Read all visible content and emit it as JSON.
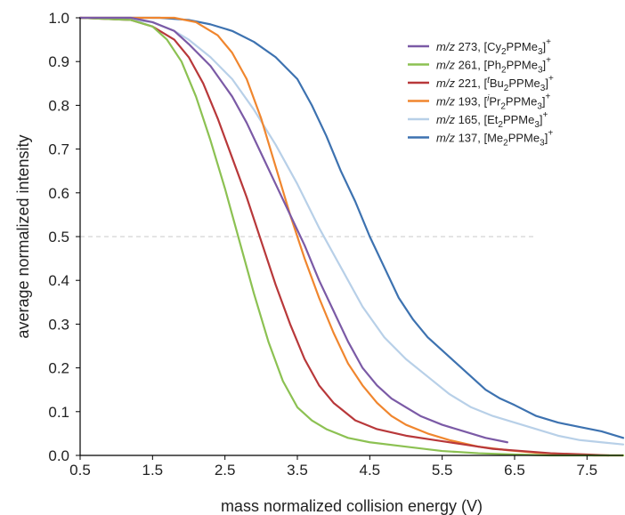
{
  "chart_data": {
    "type": "line",
    "xlabel": "mass normalized collision energy (V)",
    "ylabel": "average normalized intensity",
    "xlim": [
      0.5,
      8.0
    ],
    "ylim": [
      0.0,
      1.0
    ],
    "x_ticks": [
      "0.5",
      "1.5",
      "2.5",
      "3.5",
      "4.5",
      "5.5",
      "6.5",
      "7.5"
    ],
    "y_ticks": [
      "0.0",
      "0.1",
      "0.2",
      "0.3",
      "0.4",
      "0.5",
      "0.6",
      "0.7",
      "0.8",
      "0.9",
      "1.0"
    ],
    "reference_line": {
      "y": 0.5,
      "style": "dashed",
      "x_start": 0.5,
      "x_end": 6.8
    },
    "legend": {
      "placement": "top-right"
    },
    "series": [
      {
        "mz": "273",
        "ion": {
          "pre": "[Cy",
          "sub": "2",
          "mid": "PPMe",
          "sub2": "3",
          "post": "]",
          "sup": "+"
        },
        "color": "#7b5aa6",
        "points": [
          [
            0.5,
            1.0
          ],
          [
            1.2,
            1.0
          ],
          [
            1.5,
            0.99
          ],
          [
            1.8,
            0.97
          ],
          [
            2.0,
            0.94
          ],
          [
            2.3,
            0.89
          ],
          [
            2.6,
            0.82
          ],
          [
            2.8,
            0.76
          ],
          [
            3.0,
            0.69
          ],
          [
            3.2,
            0.62
          ],
          [
            3.4,
            0.55
          ],
          [
            3.6,
            0.48
          ],
          [
            3.8,
            0.4
          ],
          [
            4.0,
            0.33
          ],
          [
            4.2,
            0.26
          ],
          [
            4.4,
            0.2
          ],
          [
            4.6,
            0.16
          ],
          [
            4.8,
            0.13
          ],
          [
            5.0,
            0.11
          ],
          [
            5.2,
            0.09
          ],
          [
            5.5,
            0.07
          ],
          [
            5.8,
            0.055
          ],
          [
            6.1,
            0.04
          ],
          [
            6.4,
            0.03
          ]
        ]
      },
      {
        "mz": "261",
        "ion": {
          "pre": "[Ph",
          "sub": "2",
          "mid": "PPMe",
          "sub2": "3",
          "post": "]",
          "sup": "+"
        },
        "color": "#8cc152",
        "points": [
          [
            0.5,
            1.0
          ],
          [
            1.2,
            0.995
          ],
          [
            1.5,
            0.98
          ],
          [
            1.7,
            0.95
          ],
          [
            1.9,
            0.9
          ],
          [
            2.1,
            0.82
          ],
          [
            2.3,
            0.72
          ],
          [
            2.5,
            0.61
          ],
          [
            2.7,
            0.49
          ],
          [
            2.9,
            0.37
          ],
          [
            3.1,
            0.26
          ],
          [
            3.3,
            0.17
          ],
          [
            3.5,
            0.11
          ],
          [
            3.7,
            0.08
          ],
          [
            3.9,
            0.06
          ],
          [
            4.2,
            0.04
          ],
          [
            4.5,
            0.03
          ],
          [
            5.0,
            0.02
          ],
          [
            5.5,
            0.01
          ],
          [
            6.0,
            0.005
          ],
          [
            6.5,
            0.002
          ],
          [
            7.0,
            0.0
          ],
          [
            8.0,
            0.0
          ]
        ]
      },
      {
        "mz": "221",
        "ion": {
          "pre": "[",
          "sup_pre": "t",
          "mid0": "Bu",
          "sub": "2",
          "mid": "PPMe",
          "sub2": "3",
          "post": "]",
          "sup": "+"
        },
        "color": "#b8383a",
        "points": [
          [
            0.5,
            1.0
          ],
          [
            1.2,
            0.995
          ],
          [
            1.5,
            0.98
          ],
          [
            1.8,
            0.95
          ],
          [
            2.0,
            0.91
          ],
          [
            2.2,
            0.85
          ],
          [
            2.4,
            0.77
          ],
          [
            2.6,
            0.68
          ],
          [
            2.8,
            0.59
          ],
          [
            3.0,
            0.49
          ],
          [
            3.2,
            0.39
          ],
          [
            3.4,
            0.3
          ],
          [
            3.6,
            0.22
          ],
          [
            3.8,
            0.16
          ],
          [
            4.0,
            0.12
          ],
          [
            4.3,
            0.08
          ],
          [
            4.6,
            0.06
          ],
          [
            5.0,
            0.045
          ],
          [
            5.4,
            0.035
          ],
          [
            5.8,
            0.025
          ],
          [
            6.2,
            0.015
          ],
          [
            6.6,
            0.01
          ],
          [
            7.0,
            0.005
          ],
          [
            7.5,
            0.002
          ],
          [
            7.8,
            0.0
          ]
        ]
      },
      {
        "mz": "193",
        "ion": {
          "pre": "[",
          "sup_pre": "i",
          "mid0": "Pr",
          "sub": "2",
          "mid": "PPMe",
          "sub2": "3",
          "post": "]",
          "sup": "+"
        },
        "color": "#f0862e",
        "points": [
          [
            0.5,
            1.0
          ],
          [
            1.8,
            1.0
          ],
          [
            2.1,
            0.99
          ],
          [
            2.4,
            0.96
          ],
          [
            2.6,
            0.92
          ],
          [
            2.8,
            0.86
          ],
          [
            3.0,
            0.77
          ],
          [
            3.2,
            0.66
          ],
          [
            3.4,
            0.55
          ],
          [
            3.6,
            0.45
          ],
          [
            3.8,
            0.36
          ],
          [
            4.0,
            0.28
          ],
          [
            4.2,
            0.21
          ],
          [
            4.4,
            0.16
          ],
          [
            4.6,
            0.12
          ],
          [
            4.8,
            0.09
          ],
          [
            5.0,
            0.07
          ],
          [
            5.3,
            0.05
          ],
          [
            5.6,
            0.035
          ],
          [
            6.0,
            0.02
          ],
          [
            6.4,
            0.012
          ],
          [
            6.8,
            0.006
          ],
          [
            7.2,
            0.003
          ],
          [
            7.6,
            0.0
          ],
          [
            8.0,
            0.0
          ]
        ]
      },
      {
        "mz": "165",
        "ion": {
          "pre": "[Et",
          "sub": "2",
          "mid": "PPMe",
          "sub2": "3",
          "post": "]",
          "sup": "+"
        },
        "color": "#b8d0e8",
        "points": [
          [
            0.5,
            1.0
          ],
          [
            1.2,
            0.995
          ],
          [
            1.5,
            0.99
          ],
          [
            1.8,
            0.97
          ],
          [
            2.0,
            0.95
          ],
          [
            2.3,
            0.91
          ],
          [
            2.6,
            0.86
          ],
          [
            2.9,
            0.79
          ],
          [
            3.2,
            0.71
          ],
          [
            3.5,
            0.62
          ],
          [
            3.8,
            0.52
          ],
          [
            4.1,
            0.43
          ],
          [
            4.4,
            0.34
          ],
          [
            4.7,
            0.27
          ],
          [
            5.0,
            0.22
          ],
          [
            5.3,
            0.18
          ],
          [
            5.6,
            0.14
          ],
          [
            5.9,
            0.11
          ],
          [
            6.2,
            0.09
          ],
          [
            6.5,
            0.075
          ],
          [
            6.8,
            0.06
          ],
          [
            7.1,
            0.045
          ],
          [
            7.4,
            0.035
          ],
          [
            7.7,
            0.03
          ],
          [
            8.0,
            0.025
          ]
        ]
      },
      {
        "mz": "137",
        "ion": {
          "pre": "[Me",
          "sub": "2",
          "mid": "PPMe",
          "sub2": "3",
          "post": "]",
          "sup": "+"
        },
        "color": "#3d72b0",
        "points": [
          [
            0.5,
            1.0
          ],
          [
            1.6,
            1.0
          ],
          [
            2.0,
            0.995
          ],
          [
            2.3,
            0.985
          ],
          [
            2.6,
            0.97
          ],
          [
            2.9,
            0.945
          ],
          [
            3.2,
            0.91
          ],
          [
            3.5,
            0.86
          ],
          [
            3.7,
            0.8
          ],
          [
            3.9,
            0.73
          ],
          [
            4.1,
            0.65
          ],
          [
            4.3,
            0.58
          ],
          [
            4.5,
            0.5
          ],
          [
            4.7,
            0.43
          ],
          [
            4.9,
            0.36
          ],
          [
            5.1,
            0.31
          ],
          [
            5.3,
            0.27
          ],
          [
            5.5,
            0.24
          ],
          [
            5.7,
            0.21
          ],
          [
            5.9,
            0.18
          ],
          [
            6.1,
            0.15
          ],
          [
            6.3,
            0.13
          ],
          [
            6.5,
            0.115
          ],
          [
            6.8,
            0.09
          ],
          [
            7.1,
            0.075
          ],
          [
            7.4,
            0.065
          ],
          [
            7.7,
            0.055
          ],
          [
            8.0,
            0.04
          ]
        ]
      }
    ]
  }
}
